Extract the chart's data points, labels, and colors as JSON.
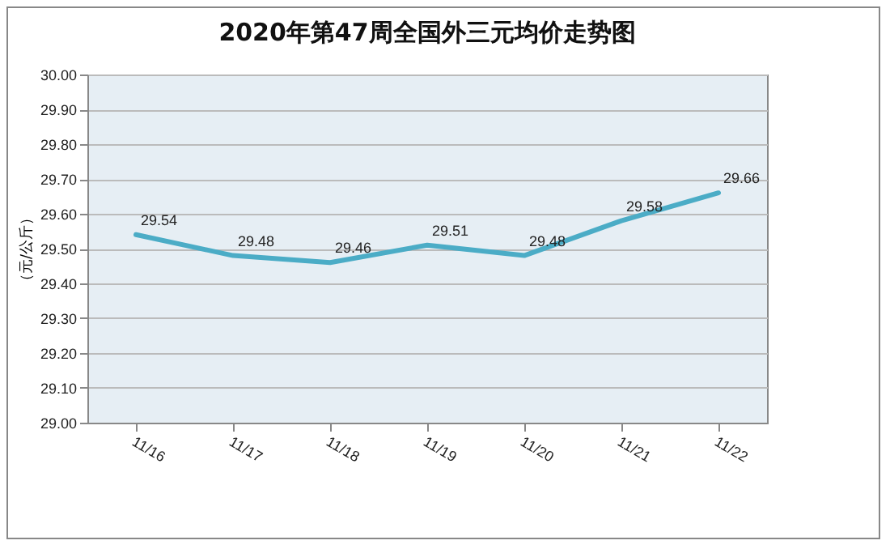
{
  "chart_data": {
    "type": "line",
    "title": "2020年第47周全国外三元均价走势图",
    "ylabel": "（元/公斤）",
    "categories": [
      "11/16",
      "11/17",
      "11/18",
      "11/19",
      "11/20",
      "11/21",
      "11/22"
    ],
    "series": [
      {
        "color": "#4bacc6",
        "values": [
          29.54,
          29.48,
          29.46,
          29.51,
          29.48,
          29.58,
          29.66
        ]
      }
    ],
    "ylim": [
      29.0,
      30.0
    ],
    "yticks": [
      {
        "value": 29.0,
        "label": "29.00"
      },
      {
        "value": 29.1,
        "label": "29.10"
      },
      {
        "value": 29.2,
        "label": "29.20"
      },
      {
        "value": 29.3,
        "label": "29.30"
      },
      {
        "value": 29.4,
        "label": "29.40"
      },
      {
        "value": 29.5,
        "label": "29.50"
      },
      {
        "value": 29.6,
        "label": "29.60"
      },
      {
        "value": 29.7,
        "label": "29.70"
      },
      {
        "value": 29.8,
        "label": "29.80"
      },
      {
        "value": 29.9,
        "label": "29.90"
      },
      {
        "value": 30.0,
        "label": "30.00"
      }
    ],
    "grid": "y",
    "data_labels": true,
    "marker": "none",
    "line_style": "solid"
  }
}
